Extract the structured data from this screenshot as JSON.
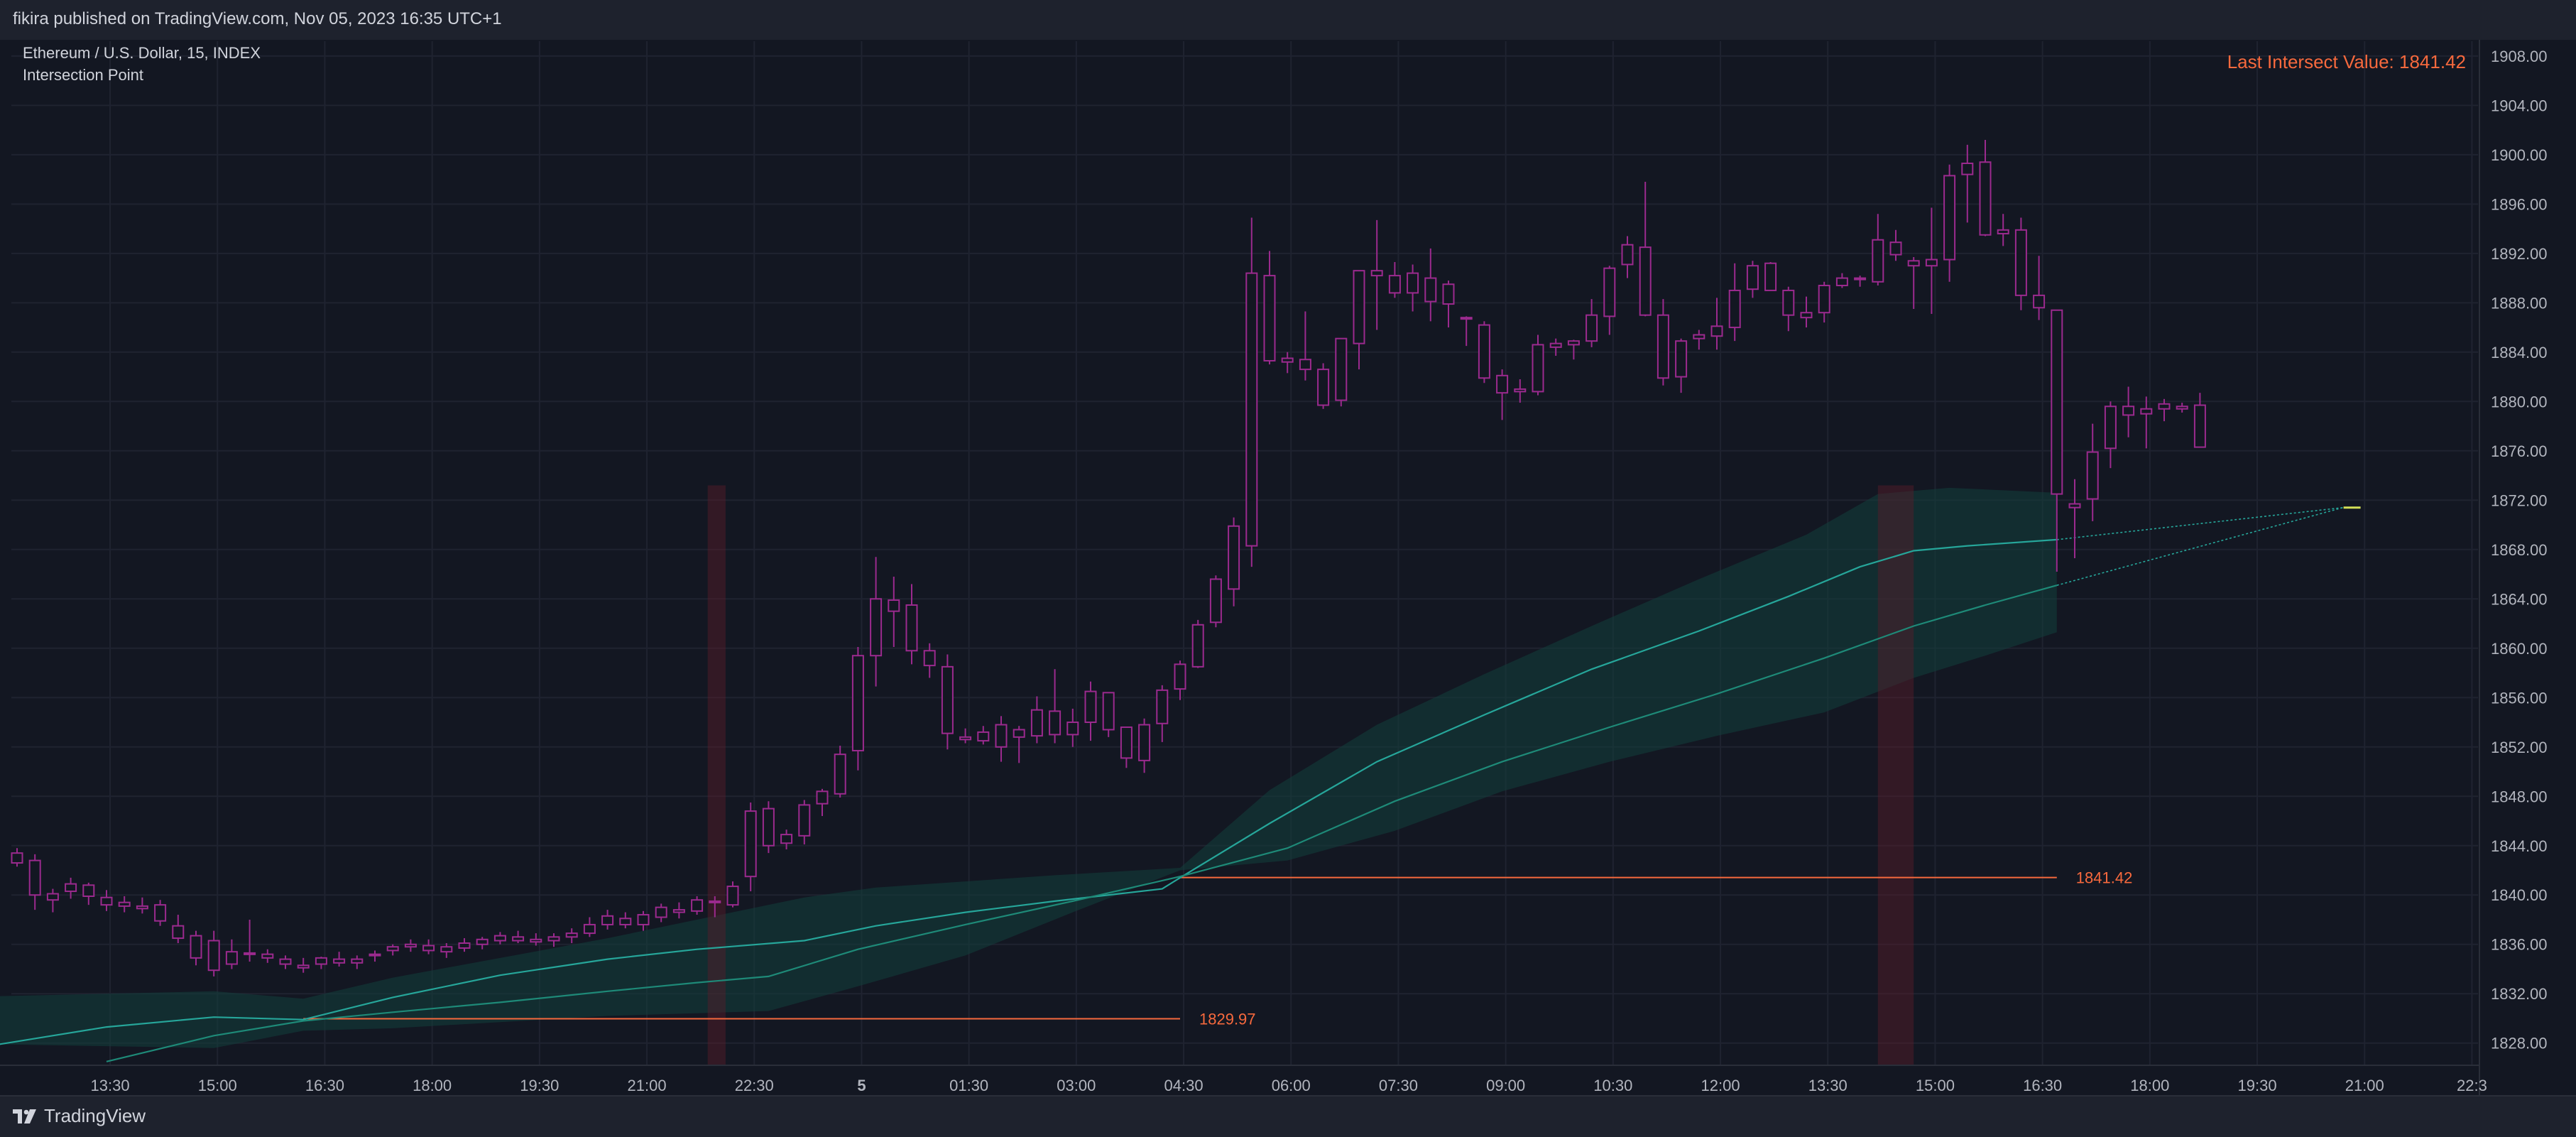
{
  "header": {
    "published_text": "fikira published on TradingView.com, Nov 05, 2023 16:35 UTC+1"
  },
  "legend": {
    "symbol": "Ethereum / U.S. Dollar, 15, INDEX",
    "indicator": "Intersection Point"
  },
  "annotation": {
    "last_intersect_label": "Last Intersect Value: 1841.42"
  },
  "footer": {
    "brand": "TradingView"
  },
  "colors": {
    "background": "#131722",
    "grid": "#1f2330",
    "candle": "#9b2a8e",
    "line_fast": "#26a69a",
    "line_slow": "#1e8a78",
    "band": "#12403c",
    "level": "#f7693d",
    "highlight": "#5a1d2a",
    "axis_text": "#b2b5be"
  },
  "chart_data": {
    "type": "candlestick",
    "yaxis": {
      "ylim": [
        1826.2,
        1909.2
      ],
      "ticks": [
        1828,
        1832,
        1836,
        1840,
        1844,
        1848,
        1852,
        1856,
        1860,
        1864,
        1868,
        1872,
        1876,
        1880,
        1884,
        1888,
        1892,
        1896,
        1900,
        1904,
        1908
      ],
      "tick_labels": [
        "1828.00",
        "1832.00",
        "1836.00",
        "1840.00",
        "1844.00",
        "1848.00",
        "1852.00",
        "1856.00",
        "1860.00",
        "1864.00",
        "1868.00",
        "1872.00",
        "1876.00",
        "1880.00",
        "1884.00",
        "1888.00",
        "1892.00",
        "1896.00",
        "1900.00",
        "1904.00",
        "1908.00"
      ]
    },
    "xaxis": {
      "tick_labels": [
        "13:30",
        "15:00",
        "16:30",
        "18:00",
        "19:30",
        "21:00",
        "22:30",
        "5",
        "01:30",
        "03:00",
        "04:30",
        "06:00",
        "07:30",
        "09:00",
        "10:30",
        "12:00",
        "13:30",
        "15:00",
        "16:30",
        "18:00",
        "19:30",
        "21:00",
        "22:3"
      ],
      "tick_bars": [
        5.2,
        11.2,
        17.2,
        23.2,
        29.2,
        35.2,
        41.2,
        47.2,
        53.2,
        59.2,
        65.2,
        71.2,
        77.2,
        83.2,
        89.2,
        95.2,
        101.2,
        107.2,
        113.2,
        119.2,
        125.2,
        131.2,
        137.2
      ]
    },
    "candles": [
      [
        1843.4,
        1843.8,
        1842.3,
        1842.6
      ],
      [
        1842.8,
        1843.3,
        1838.8,
        1840.0
      ],
      [
        1839.6,
        1840.5,
        1838.6,
        1840.1
      ],
      [
        1840.3,
        1841.4,
        1839.7,
        1840.9
      ],
      [
        1840.8,
        1841.0,
        1839.2,
        1839.9
      ],
      [
        1839.8,
        1840.4,
        1838.7,
        1839.2
      ],
      [
        1839.4,
        1839.9,
        1838.6,
        1839.1
      ],
      [
        1839.1,
        1839.8,
        1838.5,
        1838.9
      ],
      [
        1839.2,
        1839.6,
        1837.5,
        1837.9
      ],
      [
        1837.5,
        1838.4,
        1836.1,
        1836.5
      ],
      [
        1836.7,
        1837.1,
        1834.3,
        1834.9
      ],
      [
        1836.3,
        1837.1,
        1833.4,
        1833.9
      ],
      [
        1834.4,
        1836.4,
        1834.0,
        1835.4
      ],
      [
        1835.3,
        1838.0,
        1834.6,
        1835.2
      ],
      [
        1835.2,
        1835.6,
        1834.5,
        1834.9
      ],
      [
        1834.8,
        1835.1,
        1834.0,
        1834.4
      ],
      [
        1834.3,
        1834.9,
        1833.7,
        1834.1
      ],
      [
        1834.4,
        1835.0,
        1834.0,
        1834.9
      ],
      [
        1834.8,
        1835.4,
        1834.2,
        1834.5
      ],
      [
        1834.5,
        1835.1,
        1834.0,
        1834.8
      ],
      [
        1835.1,
        1835.5,
        1834.6,
        1835.2
      ],
      [
        1835.5,
        1836.0,
        1835.1,
        1835.8
      ],
      [
        1835.8,
        1836.4,
        1835.4,
        1836.0
      ],
      [
        1835.9,
        1836.4,
        1835.2,
        1835.5
      ],
      [
        1835.4,
        1836.1,
        1834.9,
        1835.8
      ],
      [
        1835.7,
        1836.5,
        1835.4,
        1836.1
      ],
      [
        1836.0,
        1836.6,
        1835.6,
        1836.4
      ],
      [
        1836.3,
        1837.0,
        1836.0,
        1836.7
      ],
      [
        1836.6,
        1837.1,
        1836.1,
        1836.3
      ],
      [
        1836.4,
        1836.9,
        1835.9,
        1836.2
      ],
      [
        1836.3,
        1836.9,
        1835.8,
        1836.6
      ],
      [
        1836.6,
        1837.3,
        1836.1,
        1836.9
      ],
      [
        1836.9,
        1838.2,
        1836.6,
        1837.6
      ],
      [
        1837.6,
        1838.8,
        1837.2,
        1838.3
      ],
      [
        1838.1,
        1838.6,
        1837.3,
        1837.6
      ],
      [
        1837.6,
        1838.7,
        1837.1,
        1838.4
      ],
      [
        1838.2,
        1839.3,
        1837.8,
        1839.0
      ],
      [
        1838.8,
        1839.4,
        1838.1,
        1838.6
      ],
      [
        1838.7,
        1839.9,
        1838.4,
        1839.6
      ],
      [
        1839.5,
        1839.9,
        1838.2,
        1839.5
      ],
      [
        1839.2,
        1841.1,
        1839.0,
        1840.7
      ],
      [
        1841.5,
        1847.5,
        1840.3,
        1846.8
      ],
      [
        1847.0,
        1847.6,
        1843.4,
        1844.0
      ],
      [
        1844.2,
        1845.3,
        1843.7,
        1844.9
      ],
      [
        1844.8,
        1847.7,
        1844.1,
        1847.3
      ],
      [
        1847.4,
        1848.6,
        1846.4,
        1848.4
      ],
      [
        1848.2,
        1852.1,
        1847.9,
        1851.4
      ],
      [
        1851.7,
        1860.1,
        1850.1,
        1859.4
      ],
      [
        1859.4,
        1867.4,
        1856.9,
        1864.0
      ],
      [
        1863.9,
        1865.8,
        1860.1,
        1863.0
      ],
      [
        1863.5,
        1865.2,
        1858.7,
        1859.8
      ],
      [
        1859.8,
        1860.4,
        1857.6,
        1858.6
      ],
      [
        1858.5,
        1859.5,
        1851.8,
        1853.1
      ],
      [
        1852.6,
        1853.5,
        1852.3,
        1852.8
      ],
      [
        1852.5,
        1853.7,
        1852.2,
        1853.2
      ],
      [
        1853.8,
        1854.5,
        1850.8,
        1852.0
      ],
      [
        1852.8,
        1853.7,
        1850.7,
        1853.4
      ],
      [
        1852.9,
        1856.1,
        1852.3,
        1855.0
      ],
      [
        1854.9,
        1858.3,
        1852.3,
        1853.0
      ],
      [
        1853.0,
        1855.1,
        1852.0,
        1854.0
      ],
      [
        1854.0,
        1857.3,
        1852.5,
        1856.5
      ],
      [
        1856.4,
        1856.4,
        1852.8,
        1853.4
      ],
      [
        1853.6,
        1853.6,
        1850.3,
        1851.1
      ],
      [
        1850.9,
        1854.3,
        1849.9,
        1853.8
      ],
      [
        1853.9,
        1857.0,
        1852.4,
        1856.6
      ],
      [
        1856.7,
        1859.0,
        1855.8,
        1858.7
      ],
      [
        1858.5,
        1862.3,
        1858.4,
        1861.9
      ],
      [
        1862.1,
        1865.9,
        1861.7,
        1865.6
      ],
      [
        1864.8,
        1870.6,
        1863.4,
        1869.9
      ],
      [
        1868.3,
        1894.9,
        1866.6,
        1890.4
      ],
      [
        1890.2,
        1892.2,
        1883.0,
        1883.3
      ],
      [
        1883.2,
        1884.0,
        1882.3,
        1883.5
      ],
      [
        1883.4,
        1887.3,
        1881.7,
        1882.6
      ],
      [
        1882.6,
        1883.1,
        1879.4,
        1879.7
      ],
      [
        1880.1,
        1884.9,
        1879.6,
        1885.1
      ],
      [
        1884.7,
        1890.4,
        1882.6,
        1890.6
      ],
      [
        1890.6,
        1894.7,
        1885.8,
        1890.2
      ],
      [
        1890.2,
        1891.3,
        1888.4,
        1888.8
      ],
      [
        1888.8,
        1891.1,
        1887.3,
        1890.4
      ],
      [
        1890.0,
        1892.4,
        1886.5,
        1888.1
      ],
      [
        1887.9,
        1889.8,
        1886.0,
        1889.5
      ],
      [
        1886.8,
        1886.9,
        1884.5,
        1886.7
      ],
      [
        1886.2,
        1886.5,
        1881.5,
        1881.9
      ],
      [
        1882.1,
        1882.6,
        1878.5,
        1880.7
      ],
      [
        1881.0,
        1881.8,
        1879.9,
        1880.8
      ],
      [
        1880.8,
        1885.4,
        1880.5,
        1884.6
      ],
      [
        1884.4,
        1885.1,
        1883.7,
        1884.7
      ],
      [
        1884.6,
        1885.0,
        1883.4,
        1884.9
      ],
      [
        1884.9,
        1888.3,
        1884.4,
        1887.0
      ],
      [
        1886.9,
        1891.0,
        1885.4,
        1890.8
      ],
      [
        1891.1,
        1893.4,
        1890.0,
        1892.7
      ],
      [
        1892.5,
        1897.8,
        1886.9,
        1887.0
      ],
      [
        1887.0,
        1888.3,
        1881.3,
        1881.9
      ],
      [
        1882.0,
        1885.1,
        1880.7,
        1884.9
      ],
      [
        1885.1,
        1885.8,
        1884.2,
        1885.4
      ],
      [
        1885.3,
        1888.4,
        1884.2,
        1886.1
      ],
      [
        1886.0,
        1891.2,
        1884.9,
        1889.0
      ],
      [
        1889.1,
        1891.4,
        1888.4,
        1891.0
      ],
      [
        1891.2,
        1891.3,
        1889.0,
        1889.0
      ],
      [
        1889.0,
        1889.3,
        1885.7,
        1887.0
      ],
      [
        1886.8,
        1888.5,
        1886.0,
        1887.2
      ],
      [
        1887.2,
        1889.7,
        1886.4,
        1889.4
      ],
      [
        1889.4,
        1890.4,
        1889.2,
        1890.0
      ],
      [
        1890.0,
        1890.2,
        1889.3,
        1889.9
      ],
      [
        1889.7,
        1895.2,
        1889.4,
        1893.1
      ],
      [
        1892.9,
        1893.9,
        1891.4,
        1891.9
      ],
      [
        1891.4,
        1891.7,
        1887.5,
        1891.0
      ],
      [
        1891.0,
        1895.7,
        1887.1,
        1891.5
      ],
      [
        1891.5,
        1899.2,
        1889.7,
        1898.3
      ],
      [
        1898.4,
        1900.8,
        1894.5,
        1899.3
      ],
      [
        1899.4,
        1901.2,
        1893.4,
        1893.5
      ],
      [
        1893.6,
        1895.2,
        1892.6,
        1893.9
      ],
      [
        1893.9,
        1894.9,
        1887.4,
        1888.6
      ],
      [
        1888.6,
        1891.8,
        1886.6,
        1887.6
      ],
      [
        1887.4,
        1887.3,
        1866.2,
        1872.5
      ],
      [
        1871.7,
        1873.7,
        1867.3,
        1871.4
      ],
      [
        1872.1,
        1878.2,
        1870.3,
        1875.9
      ],
      [
        1876.2,
        1880.0,
        1874.6,
        1879.6
      ],
      [
        1879.6,
        1881.2,
        1877.1,
        1878.9
      ],
      [
        1879.0,
        1880.4,
        1876.2,
        1879.4
      ],
      [
        1879.4,
        1880.2,
        1878.4,
        1879.8
      ],
      [
        1879.6,
        1879.9,
        1879.1,
        1879.4
      ],
      [
        1879.7,
        1880.7,
        1876.6,
        1876.3
      ]
    ],
    "series": [
      {
        "id": "fast",
        "points": [
          [
            -1,
            1827.9
          ],
          [
            5,
            1829.3
          ],
          [
            11,
            1830.1
          ],
          [
            16,
            1829.9
          ],
          [
            21,
            1831.7
          ],
          [
            27,
            1833.5
          ],
          [
            33,
            1834.8
          ],
          [
            38,
            1835.6
          ],
          [
            44,
            1836.3
          ],
          [
            48,
            1837.5
          ],
          [
            53,
            1838.6
          ],
          [
            58,
            1839.5
          ],
          [
            64,
            1840.5
          ],
          [
            65,
            1841.4
          ],
          [
            70,
            1845.8
          ],
          [
            76,
            1850.8
          ],
          [
            82,
            1854.6
          ],
          [
            88,
            1858.3
          ],
          [
            94,
            1861.4
          ],
          [
            99,
            1864.2
          ],
          [
            103,
            1866.6
          ],
          [
            106,
            1867.9
          ],
          [
            109,
            1868.3
          ],
          [
            114,
            1868.8
          ]
        ]
      },
      {
        "id": "slow",
        "points": [
          [
            5,
            1826.5
          ],
          [
            11,
            1828.6
          ],
          [
            16,
            1829.8
          ],
          [
            21,
            1830.5
          ],
          [
            27,
            1831.3
          ],
          [
            33,
            1832.2
          ],
          [
            38,
            1832.9
          ],
          [
            42,
            1833.4
          ],
          [
            47,
            1835.6
          ],
          [
            53,
            1837.6
          ],
          [
            59,
            1839.5
          ],
          [
            65,
            1841.5
          ],
          [
            71,
            1843.8
          ],
          [
            77,
            1847.6
          ],
          [
            83,
            1850.8
          ],
          [
            89,
            1853.6
          ],
          [
            95,
            1856.3
          ],
          [
            101,
            1859.2
          ],
          [
            106,
            1861.8
          ],
          [
            110,
            1863.5
          ],
          [
            114,
            1865.1
          ]
        ]
      },
      {
        "id": "projection_upper",
        "points": [
          [
            114,
            1868.8
          ],
          [
            130,
            1871.4
          ]
        ]
      },
      {
        "id": "projection_lower",
        "points": [
          [
            114,
            1865.1
          ],
          [
            130,
            1871.4
          ]
        ]
      },
      {
        "id": "band_upper",
        "points": [
          [
            -1,
            1831.8
          ],
          [
            11,
            1832.2
          ],
          [
            16,
            1831.6
          ],
          [
            21,
            1833.3
          ],
          [
            33,
            1836.5
          ],
          [
            44,
            1839.8
          ],
          [
            48,
            1840.6
          ],
          [
            58,
            1841.6
          ],
          [
            65,
            1842.2
          ],
          [
            70,
            1848.5
          ],
          [
            76,
            1853.8
          ],
          [
            82,
            1857.9
          ],
          [
            88,
            1861.8
          ],
          [
            94,
            1865.6
          ],
          [
            100,
            1869.2
          ],
          [
            104,
            1872.5
          ],
          [
            108,
            1873.0
          ],
          [
            114,
            1872.6
          ]
        ]
      },
      {
        "id": "band_lower",
        "points": [
          [
            -1,
            1827.9
          ],
          [
            11,
            1827.6
          ],
          [
            16,
            1829.0
          ],
          [
            21,
            1829.2
          ],
          [
            33,
            1830.2
          ],
          [
            42,
            1830.6
          ],
          [
            47,
            1832.6
          ],
          [
            53,
            1835.1
          ],
          [
            59,
            1838.6
          ],
          [
            65,
            1842.0
          ],
          [
            71,
            1842.8
          ],
          [
            77,
            1845.2
          ],
          [
            83,
            1848.4
          ],
          [
            89,
            1850.8
          ],
          [
            95,
            1852.9
          ],
          [
            101,
            1854.8
          ],
          [
            106,
            1857.6
          ],
          [
            110,
            1859.4
          ],
          [
            114,
            1861.3
          ]
        ]
      }
    ],
    "intersections": [
      {
        "x": 16,
        "x_end": 65,
        "value": 1829.97,
        "label": "1829.97"
      },
      {
        "x": 65,
        "x_end": 114,
        "value": 1841.42,
        "label": "1841.42"
      }
    ],
    "highlights": [
      {
        "x0": 38.6,
        "x1": 39.6
      },
      {
        "x0": 104,
        "x1": 106
      }
    ],
    "projection_target": {
      "x": 130.5,
      "value": 1871.4
    }
  }
}
